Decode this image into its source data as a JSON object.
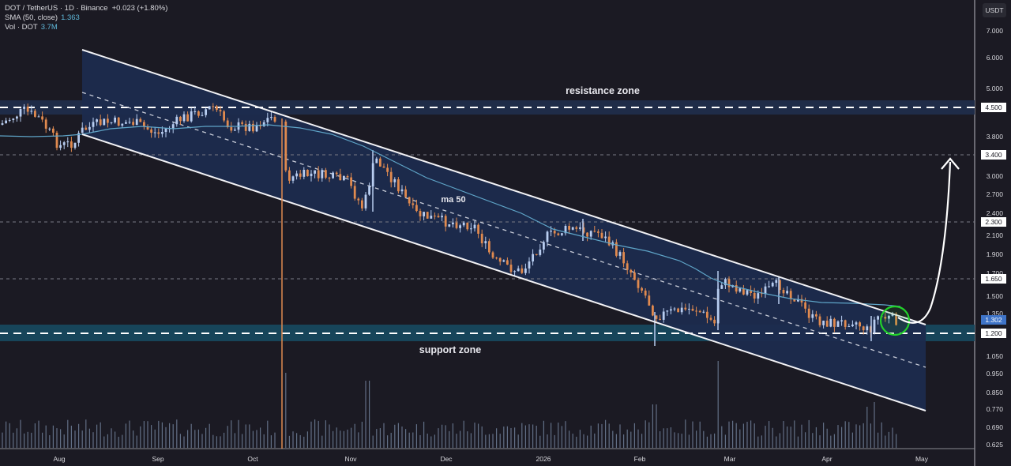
{
  "legend": {
    "symbol_line": "DOT / TetherUS · 1D · Binance",
    "change": "+0.023 (+1.80%)",
    "sma_label": "SMA (50, close)",
    "sma_value": "1.363",
    "vol_label": "Vol · DOT",
    "vol_value": "3.7M"
  },
  "currency_button": "USDT",
  "colors": {
    "background": "#1b1a23",
    "up_candle": "#b8cdf0",
    "down_candle": "#e08a4f",
    "sma_line": "#5fa5c8",
    "channel_fill": "#1c2b4e",
    "zone_fill": "#1f2c48",
    "support_fill": "#1a4a5e",
    "circle": "#22d32a",
    "arrow": "#ffffff"
  },
  "annotations": {
    "resistance": "resistance zone",
    "support": "support zone",
    "ma": "ma 50"
  },
  "chart_data": {
    "type": "candlestick",
    "title": "DOT / TetherUS · 1D · Binance",
    "xlabel": "",
    "ylabel": "USDT",
    "scale": "log",
    "ylim": [
      0.6,
      7.5
    ],
    "y_ticks": [
      "7.000",
      "6.000",
      "5.000",
      "4.500",
      "3.800",
      "3.400",
      "3.000",
      "2.700",
      "2.400",
      "2.300",
      "2.100",
      "1.900",
      "1.700",
      "1.650",
      "1.500",
      "1.350",
      "1.302",
      "1.200",
      "1.050",
      "0.950",
      "0.850",
      "0.770",
      "0.690",
      "0.625"
    ],
    "x_ticks": [
      "Aug",
      "Sep",
      "Oct",
      "Nov",
      "Dec",
      "2026",
      "Feb",
      "Mar",
      "Apr",
      "May"
    ],
    "horizontal_levels": [
      {
        "price": 4.5,
        "label": "4.500",
        "style": "dashed-bold",
        "zone": "resistance zone"
      },
      {
        "price": 3.4,
        "label": "3.400",
        "style": "dashed"
      },
      {
        "price": 2.3,
        "label": "2.300",
        "style": "dashed"
      },
      {
        "price": 1.65,
        "label": "1.650",
        "style": "dashed"
      },
      {
        "price": 1.2,
        "label": "1.200",
        "style": "dashed-bold",
        "zone": "support zone"
      }
    ],
    "current_price": 1.302,
    "sma50_last": 1.363,
    "volume_last": "3.7M",
    "channel": {
      "type": "descending parallel channel",
      "upper_start": 6.3,
      "upper_end": 1.25,
      "lower_start": 3.85,
      "lower_end": 0.76
    },
    "projection": {
      "from": 1.25,
      "to": 3.4,
      "label": "bullish breakout arrow"
    },
    "series_approx_closes": [
      {
        "month": "Jul",
        "close": 4.1
      },
      {
        "month": "Aug",
        "close": 3.9
      },
      {
        "month": "Sep",
        "close": 4.0
      },
      {
        "month": "Oct",
        "close": 4.2
      },
      {
        "month": "Nov",
        "close": 3.1
      },
      {
        "month": "Dec",
        "close": 2.0
      },
      {
        "month": "Jan",
        "close": 2.2
      },
      {
        "month": "Feb",
        "close": 1.3
      },
      {
        "month": "Mar",
        "close": 1.55
      },
      {
        "month": "Apr",
        "close": 1.3
      }
    ]
  }
}
